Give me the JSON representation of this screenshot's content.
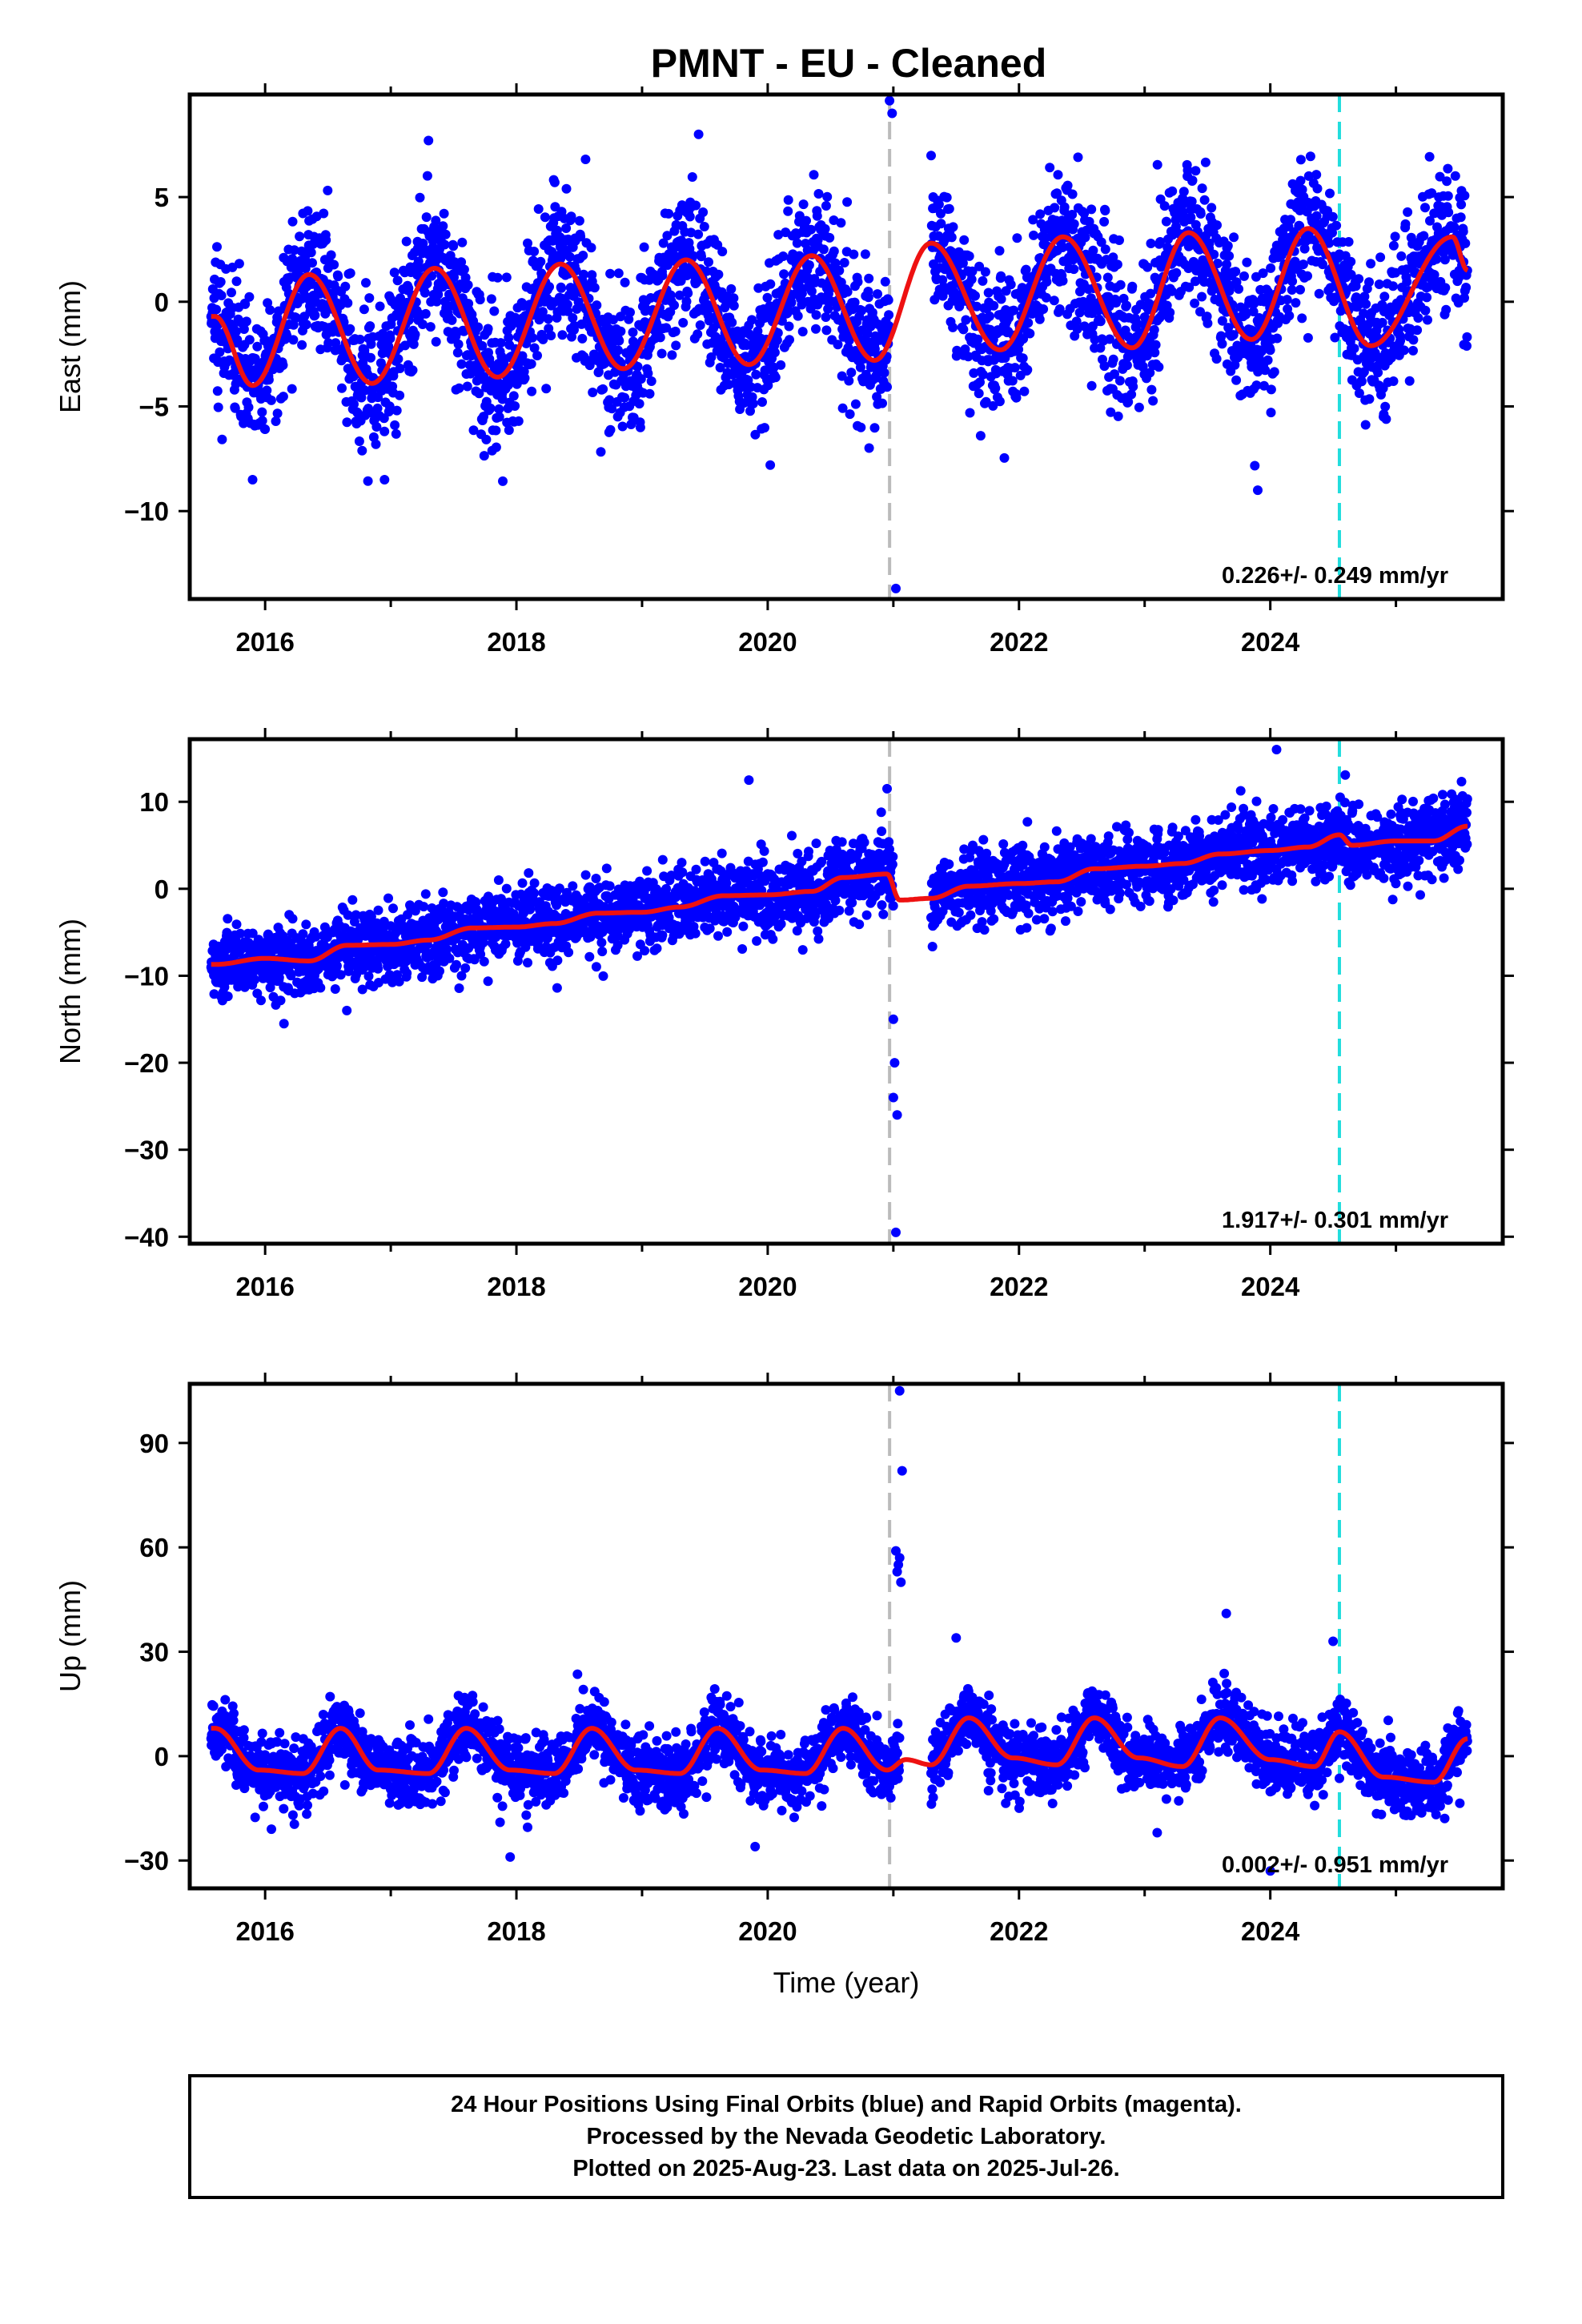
{
  "title": "PMNT  - EU - Cleaned",
  "colors": {
    "final_orbits": "#0000ff",
    "fit": "#ee1111",
    "equipment_change": "#bbbbbb",
    "antenna_change": "#22dddd",
    "frame": "#000000"
  },
  "footer": {
    "line1": "24 Hour Positions Using Final Orbits (blue) and Rapid Orbits (magenta).",
    "line2": "Processed by the Nevada Geodetic Laboratory.",
    "line3": "Plotted on 2025-Aug-23. Last data on 2025-Jul-26."
  },
  "chart_data": [
    {
      "type": "scatter",
      "component": "east",
      "ylabel": "East (mm)",
      "xlabel": "",
      "xlim": [
        2015.4,
        2025.85
      ],
      "ylim": [
        -14.2,
        9.9
      ],
      "x_ticks": [
        2016,
        2018,
        2020,
        2022,
        2024
      ],
      "x_tick_labels": [
        "2016",
        "2018",
        "2020",
        "2022",
        "2024"
      ],
      "y_ticks": [
        -10,
        -5,
        0,
        5
      ],
      "y_tick_labels": [
        "−10",
        "−5",
        "0",
        "5"
      ],
      "rate_text": "0.226+/- 0.249 mm/yr",
      "vertical_lines": [
        {
          "x": 2020.97,
          "color_key": "equipment_change"
        },
        {
          "x": 2024.55,
          "color_key": "antenna_change"
        }
      ],
      "data_span": [
        2015.57,
        2025.57
      ],
      "gap": [
        2020.97,
        2021.3
      ],
      "fit": {
        "x": [
          2015.6,
          2015.9,
          2016.35,
          2016.85,
          2017.35,
          2017.85,
          2018.35,
          2018.85,
          2019.35,
          2019.85,
          2020.35,
          2020.85,
          2021.3,
          2021.85,
          2022.35,
          2022.9,
          2023.35,
          2023.85,
          2024.3,
          2024.8,
          2025.45,
          2025.57
        ],
        "y": [
          -0.7,
          -4.0,
          1.3,
          -3.9,
          1.6,
          -3.6,
          1.8,
          -3.2,
          2.0,
          -3.0,
          2.2,
          -2.8,
          2.8,
          -2.3,
          3.1,
          -2.2,
          3.3,
          -1.8,
          3.5,
          -2.1,
          3.1,
          1.5
        ]
      },
      "scatter": {
        "noise": 1.7,
        "outliers": [
          [
            2020.97,
            9.6
          ],
          [
            2020.99,
            9.0
          ],
          [
            2021.02,
            -13.7
          ],
          [
            2023.9,
            -9.0
          ],
          [
            2020.02,
            -7.8
          ],
          [
            2015.9,
            -8.5
          ],
          [
            2016.95,
            -8.5
          ],
          [
            2017.3,
            7.7
          ],
          [
            2019.45,
            8.0
          ],
          [
            2018.55,
            6.8
          ]
        ]
      }
    },
    {
      "type": "scatter",
      "component": "north",
      "ylabel": "North (mm)",
      "xlabel": "",
      "xlim": [
        2015.4,
        2025.85
      ],
      "ylim": [
        -40.8,
        17.2
      ],
      "x_ticks": [
        2016,
        2018,
        2020,
        2022,
        2024
      ],
      "x_tick_labels": [
        "2016",
        "2018",
        "2020",
        "2022",
        "2024"
      ],
      "y_ticks": [
        -40,
        -30,
        -20,
        -10,
        0,
        10
      ],
      "y_tick_labels": [
        "−40",
        "−30",
        "−20",
        "−10",
        "0",
        "10"
      ],
      "rate_text": "1.917+/- 0.301 mm/yr",
      "vertical_lines": [
        {
          "x": 2020.97,
          "color_key": "equipment_change"
        },
        {
          "x": 2024.55,
          "color_key": "antenna_change"
        }
      ],
      "data_span": [
        2015.57,
        2025.57
      ],
      "gap": [
        2021.0,
        2021.3
      ],
      "fit": {
        "x": [
          2015.6,
          2016.0,
          2016.35,
          2016.65,
          2017.0,
          2017.3,
          2017.65,
          2018.0,
          2018.3,
          2018.65,
          2019.0,
          2019.3,
          2019.65,
          2020.0,
          2020.35,
          2020.6,
          2020.95,
          2021.05,
          2021.3,
          2021.6,
          2022.0,
          2022.3,
          2022.6,
          2023.0,
          2023.3,
          2023.6,
          2024.0,
          2024.3,
          2024.55,
          2024.65,
          2025.0,
          2025.3,
          2025.57
        ],
        "y": [
          -8.7,
          -8.0,
          -8.3,
          -6.5,
          -6.4,
          -5.9,
          -4.5,
          -4.4,
          -4.0,
          -2.8,
          -2.7,
          -2.1,
          -0.8,
          -0.7,
          -0.3,
          1.3,
          1.7,
          -1.3,
          -1.1,
          0.3,
          0.6,
          0.8,
          2.3,
          2.6,
          2.9,
          4.0,
          4.4,
          4.8,
          6.2,
          5.0,
          5.5,
          5.5,
          7.2
        ]
      },
      "scatter": {
        "noise": 2.1,
        "outliers": [
          [
            2021.0,
            -24.0
          ],
          [
            2021.02,
            -39.5
          ],
          [
            2021.03,
            -26.0
          ],
          [
            2021.01,
            -20.0
          ],
          [
            2021.0,
            -15.0
          ],
          [
            2024.05,
            16.0
          ],
          [
            2019.85,
            12.5
          ],
          [
            2020.95,
            11.5
          ],
          [
            2016.15,
            -15.5
          ],
          [
            2016.65,
            -14.0
          ]
        ]
      }
    },
    {
      "type": "scatter",
      "component": "up",
      "ylabel": "Up (mm)",
      "xlabel": "Time (year)",
      "xlim": [
        2015.4,
        2025.85
      ],
      "ylim": [
        -38.0,
        107.0
      ],
      "x_ticks": [
        2016,
        2018,
        2020,
        2022,
        2024
      ],
      "x_tick_labels": [
        "2016",
        "2018",
        "2020",
        "2022",
        "2024"
      ],
      "y_ticks": [
        -30,
        0,
        30,
        60,
        90
      ],
      "y_tick_labels": [
        "−30",
        "0",
        "30",
        "60",
        "90"
      ],
      "rate_text": "0.002+/- 0.951 mm/yr",
      "vertical_lines": [
        {
          "x": 2020.97,
          "color_key": "equipment_change"
        },
        {
          "x": 2024.55,
          "color_key": "antenna_change"
        }
      ],
      "data_span": [
        2015.57,
        2025.57
      ],
      "gap": [
        2021.05,
        2021.3
      ],
      "fit": {
        "x": [
          2015.6,
          2015.95,
          2016.3,
          2016.6,
          2016.9,
          2017.3,
          2017.6,
          2017.95,
          2018.3,
          2018.6,
          2018.95,
          2019.3,
          2019.6,
          2019.95,
          2020.3,
          2020.6,
          2020.95,
          2021.1,
          2021.3,
          2021.6,
          2021.95,
          2022.3,
          2022.6,
          2022.95,
          2023.3,
          2023.6,
          2024.0,
          2024.35,
          2024.55,
          2024.9,
          2025.3,
          2025.57
        ],
        "y": [
          8.0,
          -4.0,
          -5.0,
          8.0,
          -4.0,
          -5.0,
          8.0,
          -4.0,
          -5.0,
          8.0,
          -4.0,
          -5.0,
          8.0,
          -4.0,
          -5.0,
          8.0,
          -4.0,
          -1.0,
          -2.5,
          11.0,
          -0.5,
          -2.5,
          11.0,
          -0.5,
          -3.0,
          11.0,
          -1.0,
          -3.0,
          7.0,
          -6.0,
          -7.5,
          5.0
        ]
      },
      "scatter": {
        "noise": 4.8,
        "outliers": [
          [
            2021.05,
            105.0
          ],
          [
            2021.07,
            82.0
          ],
          [
            2021.02,
            59.0
          ],
          [
            2021.04,
            55.0
          ],
          [
            2021.06,
            50.0
          ],
          [
            2021.03,
            53.0
          ],
          [
            2021.05,
            57.0
          ],
          [
            2023.65,
            41.0
          ],
          [
            2024.5,
            33.0
          ],
          [
            2021.5,
            34.0
          ],
          [
            2017.95,
            -29.0
          ],
          [
            2019.9,
            -26.0
          ],
          [
            2024.0,
            -33.0
          ],
          [
            2023.1,
            -22.0
          ],
          [
            2016.05,
            -21.0
          ]
        ]
      }
    }
  ]
}
